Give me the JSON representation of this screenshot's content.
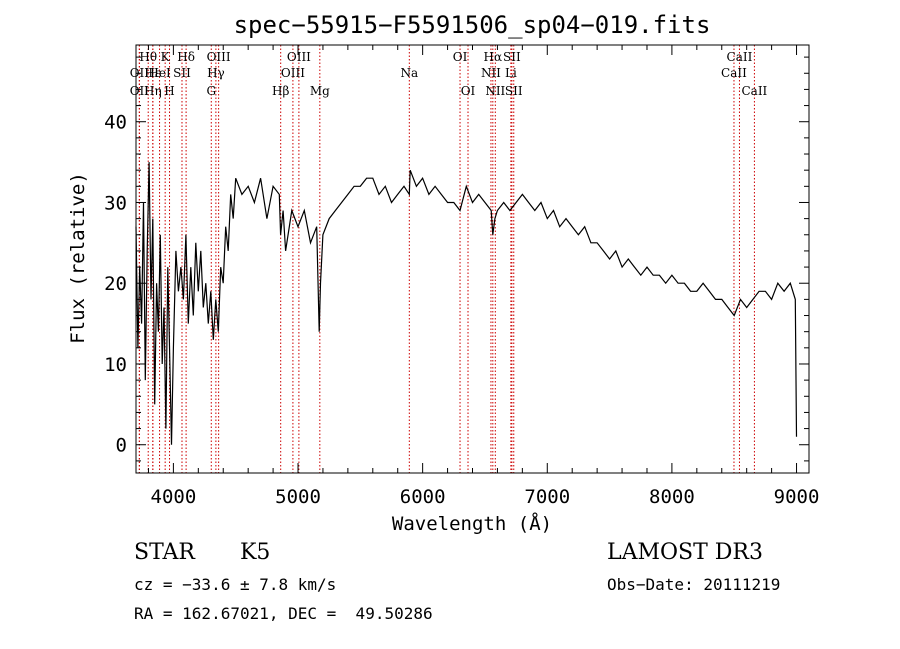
{
  "chart_data": {
    "type": "line",
    "title": "spec−55915−F5591506_sp04−019.fits",
    "xlabel": "Wavelength (Å)",
    "ylabel": "Flux (relative)",
    "xlim": [
      3700,
      9100
    ],
    "ylim": [
      -3.5,
      49.5
    ],
    "xticks": [
      {
        "value": 4000,
        "label": "4000"
      },
      {
        "value": 5000,
        "label": "5000"
      },
      {
        "value": 6000,
        "label": "6000"
      },
      {
        "value": 7000,
        "label": "7000"
      },
      {
        "value": 8000,
        "label": "8000"
      },
      {
        "value": 9000,
        "label": "9000"
      }
    ],
    "yticks": [
      {
        "value": 0,
        "label": "0"
      },
      {
        "value": 10,
        "label": "10"
      },
      {
        "value": 20,
        "label": "20"
      },
      {
        "value": 30,
        "label": "30"
      },
      {
        "value": 40,
        "label": "40"
      }
    ],
    "series": [
      {
        "name": "flux",
        "x": [
          3700,
          3715,
          3730,
          3745,
          3760,
          3775,
          3790,
          3805,
          3820,
          3835,
          3850,
          3865,
          3880,
          3895,
          3910,
          3925,
          3940,
          3955,
          3970,
          3985,
          4000,
          4020,
          4040,
          4060,
          4080,
          4100,
          4120,
          4140,
          4160,
          4180,
          4200,
          4220,
          4240,
          4260,
          4280,
          4300,
          4320,
          4340,
          4360,
          4380,
          4400,
          4420,
          4440,
          4460,
          4480,
          4500,
          4550,
          4600,
          4650,
          4700,
          4750,
          4800,
          4850,
          4860,
          4880,
          4900,
          4950,
          5000,
          5050,
          5100,
          5150,
          5170,
          5180,
          5200,
          5250,
          5300,
          5350,
          5400,
          5450,
          5500,
          5550,
          5600,
          5650,
          5700,
          5750,
          5800,
          5850,
          5893,
          5900,
          5950,
          6000,
          6050,
          6100,
          6150,
          6200,
          6250,
          6300,
          6350,
          6400,
          6450,
          6500,
          6550,
          6563,
          6580,
          6600,
          6650,
          6700,
          6750,
          6800,
          6850,
          6900,
          6950,
          7000,
          7050,
          7100,
          7150,
          7200,
          7250,
          7300,
          7350,
          7400,
          7450,
          7500,
          7550,
          7600,
          7650,
          7700,
          7750,
          7800,
          7850,
          7900,
          7950,
          8000,
          8050,
          8100,
          8150,
          8200,
          8250,
          8300,
          8350,
          8400,
          8450,
          8500,
          8550,
          8600,
          8650,
          8700,
          8750,
          8800,
          8850,
          8900,
          8950,
          8990,
          9000
        ],
        "y": [
          27,
          12,
          22,
          15,
          30,
          8,
          24,
          35,
          18,
          28,
          5,
          20,
          14,
          26,
          10,
          17,
          2,
          22,
          11,
          0,
          12,
          24,
          19,
          22,
          18,
          26,
          15,
          22,
          16,
          25,
          19,
          24,
          17,
          20,
          15,
          19,
          13,
          18,
          14,
          22,
          20,
          27,
          24,
          31,
          28,
          33,
          31,
          32,
          30,
          33,
          28,
          32,
          31,
          26,
          29,
          24,
          29,
          27,
          29,
          25,
          27,
          14,
          20,
          26,
          28,
          29,
          30,
          31,
          32,
          32,
          33,
          33,
          31,
          32,
          30,
          31,
          32,
          31,
          34,
          32,
          33,
          31,
          32,
          31,
          30,
          30,
          29,
          32,
          30,
          31,
          30,
          29,
          26,
          28,
          29,
          30,
          29,
          30,
          31,
          30,
          29,
          30,
          28,
          29,
          27,
          28,
          27,
          26,
          27,
          25,
          25,
          24,
          23,
          24,
          22,
          23,
          22,
          21,
          22,
          21,
          21,
          20,
          21,
          20,
          20,
          19,
          19,
          20,
          19,
          18,
          18,
          17,
          16,
          18,
          17,
          18,
          19,
          19,
          18,
          20,
          19,
          20,
          18,
          1
        ]
      }
    ],
    "spectral_lines": [
      {
        "label": "Hθ",
        "x": 3798,
        "row": 1
      },
      {
        "label": "OII",
        "x": 3727,
        "row": 2
      },
      {
        "label": "Hε",
        "x": 3835,
        "row": 2
      },
      {
        "label": "OII",
        "x": 3727,
        "row": 3
      },
      {
        "label": "Hη",
        "x": 3835,
        "row": 3
      },
      {
        "label": "K",
        "x": 3934,
        "row": 1
      },
      {
        "label": "HeI",
        "x": 3889,
        "row": 2
      },
      {
        "label": "H",
        "x": 3969,
        "row": 3
      },
      {
        "label": "SII",
        "x": 4069,
        "row": 2
      },
      {
        "label": "Hδ",
        "x": 4102,
        "row": 1
      },
      {
        "label": "OIII",
        "x": 4363,
        "row": 1
      },
      {
        "label": "Hγ",
        "x": 4341,
        "row": 2
      },
      {
        "label": "G",
        "x": 4304,
        "row": 3
      },
      {
        "label": "Hβ",
        "x": 4861,
        "row": 3
      },
      {
        "label": "OIII",
        "x": 5007,
        "row": 1
      },
      {
        "label": "OIII",
        "x": 4959,
        "row": 2
      },
      {
        "label": "Mg",
        "x": 5175,
        "row": 3
      },
      {
        "label": "Na",
        "x": 5893,
        "row": 2
      },
      {
        "label": "OI",
        "x": 6300,
        "row": 1
      },
      {
        "label": "OI",
        "x": 6364,
        "row": 3
      },
      {
        "label": "Hα",
        "x": 6563,
        "row": 1
      },
      {
        "label": "SII",
        "x": 6716,
        "row": 1
      },
      {
        "label": "NII",
        "x": 6548,
        "row": 2
      },
      {
        "label": "Li",
        "x": 6708,
        "row": 2
      },
      {
        "label": "NII",
        "x": 6583,
        "row": 3
      },
      {
        "label": "SII",
        "x": 6731,
        "row": 3
      },
      {
        "label": "CaII",
        "x": 8542,
        "row": 1
      },
      {
        "label": "CaII",
        "x": 8498,
        "row": 2
      },
      {
        "label": "CaII",
        "x": 8662,
        "row": 3
      }
    ],
    "line_color": "#000000",
    "marker_color": "#cc0000"
  },
  "info": {
    "class": "STAR",
    "subclass": "K5",
    "survey": "LAMOST DR3",
    "cz": "cz = −33.6 ± 7.8 km/s",
    "obs_date": "Obs−Date: 20111219",
    "radec": "RA = 162.67021, DEC =  49.50286"
  }
}
